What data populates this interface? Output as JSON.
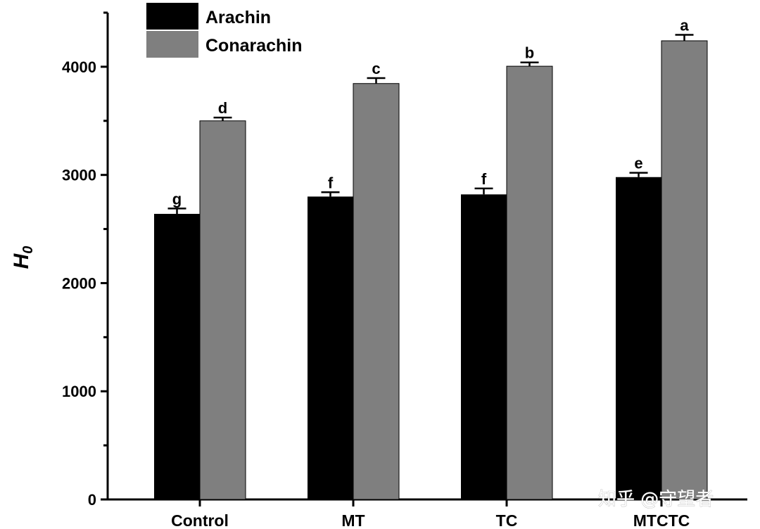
{
  "chart_data": {
    "type": "bar",
    "title": "",
    "xlabel": "",
    "ylabel": "H",
    "ylabel_subscript": "0",
    "ylim": [
      0,
      4500
    ],
    "yticks": [
      0,
      1000,
      2000,
      3000,
      4000
    ],
    "categories": [
      "Control",
      "MT",
      "TC",
      "MTCTC"
    ],
    "series": [
      {
        "name": "Arachin",
        "color": "#000000",
        "values": [
          2640,
          2800,
          2820,
          2980
        ],
        "errors": [
          50,
          40,
          55,
          40
        ],
        "significance": [
          "g",
          "f",
          "f",
          "e"
        ]
      },
      {
        "name": "Conarachin",
        "color": "#7f7f7f",
        "values": [
          3500,
          3845,
          4005,
          4240
        ],
        "errors": [
          30,
          50,
          35,
          55
        ],
        "significance": [
          "d",
          "c",
          "b",
          "a"
        ]
      }
    ],
    "legend_position": "top-left",
    "grid": false
  },
  "watermark": "知乎 @守望者"
}
